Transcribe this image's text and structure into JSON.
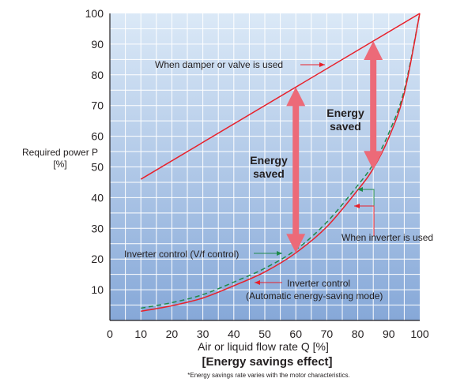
{
  "chart_data": {
    "type": "line",
    "title": "[Energy savings effect]",
    "note": "*Energy savings rate varies with the motor characteristics.",
    "xlabel": "Air or liquid flow rate Q [%]",
    "ylabel_line1": "Required power P",
    "ylabel_line2": "[%]",
    "xlim": [
      0,
      100
    ],
    "ylim": [
      0,
      100
    ],
    "x_ticks": [
      0,
      10,
      20,
      30,
      40,
      50,
      60,
      70,
      80,
      90,
      100
    ],
    "y_ticks": [
      10,
      20,
      30,
      40,
      50,
      60,
      70,
      80,
      90,
      100
    ],
    "grid": true,
    "series": [
      {
        "name": "When damper or valve is used",
        "color": "#e8202a",
        "style": "solid",
        "x": [
          10,
          100
        ],
        "y": [
          46,
          100
        ]
      },
      {
        "name": "Inverter control (V/f control)",
        "color": "#1f8a4c",
        "style": "dashed",
        "x": [
          10,
          20,
          30,
          40,
          50,
          60,
          70,
          80,
          85,
          90,
          95,
          100
        ],
        "y": [
          4,
          5.8,
          8.4,
          12.5,
          17,
          23,
          32,
          44,
          51,
          61,
          75,
          100
        ]
      },
      {
        "name": "Inverter control (Automatic energy-saving mode)",
        "color": "#e8202a",
        "style": "solid",
        "x": [
          10,
          20,
          30,
          40,
          50,
          60,
          70,
          80,
          85,
          90,
          95,
          100
        ],
        "y": [
          3,
          4.8,
          7.3,
          11.3,
          15.8,
          22,
          30.5,
          42.5,
          49.5,
          59.5,
          74,
          100
        ]
      }
    ],
    "annotations": {
      "damper_label": "When damper or valve is used",
      "vf_label": "Inverter control (V/f control)",
      "auto_label_line1": "Inverter control",
      "auto_label_line2": "(Automatic energy-saving mode)",
      "inverter_used_label": "When inverter is used",
      "saved_left_line1": "Energy",
      "saved_left_line2": "saved",
      "saved_right_line1": "Energy",
      "saved_right_line2": "saved"
    },
    "energy_arrows": [
      {
        "x": 60,
        "y_top": 76,
        "y_bottom": 22
      },
      {
        "x": 85,
        "y_top": 91,
        "y_bottom": 49
      }
    ],
    "arrow_color": "#ec6a78",
    "bg_top_color": "#dbe9f7",
    "bg_bottom_color": "#86a8d8"
  }
}
